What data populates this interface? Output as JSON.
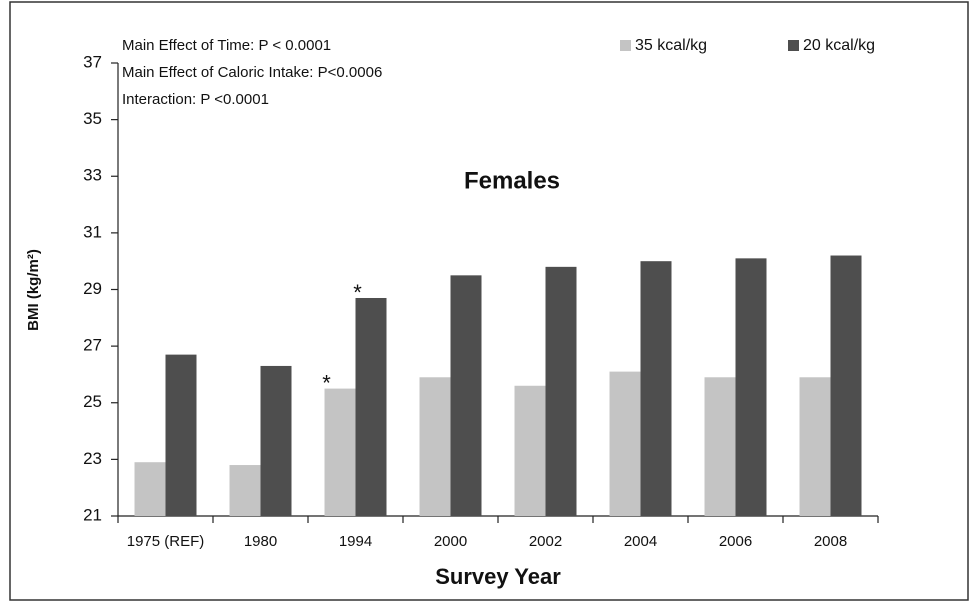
{
  "chart_data": {
    "type": "bar",
    "title": "Females",
    "xlabel": "Survey Year",
    "ylabel": "BMI (kg/m²)",
    "annotations": [
      "Main Effect of Time: P < 0.0001",
      "Main Effect of Caloric Intake: P<0.0006",
      "Interaction: P <0.0001"
    ],
    "categories": [
      "1975 (REF)",
      "1980",
      "1994",
      "2000",
      "2002",
      "2004",
      "2006",
      "2008"
    ],
    "series": [
      {
        "name": "35 kcal/kg",
        "color": "#c4c4c4",
        "values": [
          22.9,
          22.8,
          25.5,
          25.9,
          25.6,
          26.1,
          25.9,
          25.9
        ],
        "markers": [
          null,
          null,
          "*",
          null,
          null,
          null,
          null,
          null
        ]
      },
      {
        "name": "20 kcal/kg",
        "color": "#4e4e4e",
        "values": [
          26.7,
          26.3,
          28.7,
          29.5,
          29.8,
          30.0,
          30.1,
          30.2
        ],
        "markers": [
          null,
          null,
          "*",
          null,
          null,
          null,
          null,
          null
        ]
      }
    ],
    "ylim": [
      21,
      37
    ],
    "yticks": [
      21,
      23,
      25,
      27,
      29,
      31,
      33,
      35,
      37
    ],
    "grid": false,
    "legend": "top-right"
  }
}
